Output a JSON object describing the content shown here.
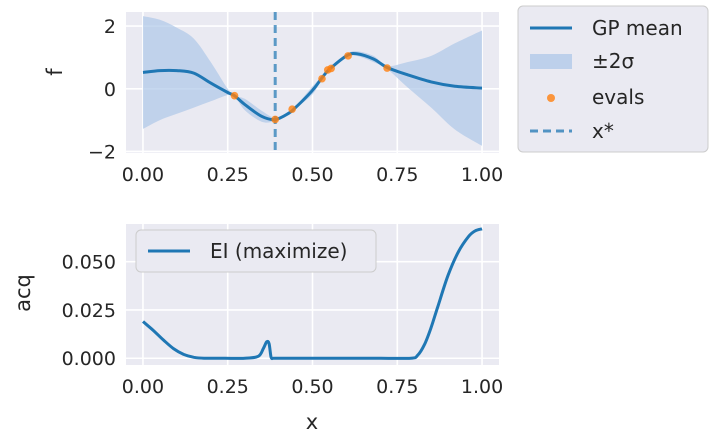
{
  "chart_data": [
    {
      "type": "line",
      "xlabel": "",
      "ylabel": "f",
      "xlim": [
        -0.05,
        1.05
      ],
      "ylim": [
        -2.05,
        2.45
      ],
      "xticks": [
        0.0,
        0.25,
        0.5,
        0.75,
        1.0
      ],
      "xtick_labels": [
        "0.00",
        "0.25",
        "0.50",
        "0.75",
        "1.00"
      ],
      "yticks": [
        -2,
        0,
        2
      ],
      "ytick_labels": [
        "−2",
        "0",
        "2"
      ],
      "grid": true,
      "legend": {
        "placement": "outside-right-top",
        "entries": [
          {
            "label": "GP mean",
            "kind": "line",
            "color": "#1f77b4"
          },
          {
            "label": "±2σ",
            "kind": "band",
            "color": "#aec7e8"
          },
          {
            "label": "evals",
            "kind": "point",
            "color": "#ff7f0e"
          },
          {
            "label": "x*",
            "kind": "dashed",
            "color": "#1f77b4"
          }
        ]
      },
      "series": [
        {
          "name": "GP mean",
          "x": [
            0.0,
            0.05,
            0.1,
            0.15,
            0.2,
            0.25,
            0.27,
            0.3,
            0.35,
            0.39,
            0.43,
            0.45,
            0.5,
            0.53,
            0.55,
            0.6,
            0.63,
            0.68,
            0.72,
            0.78,
            0.85,
            0.92,
            1.0
          ],
          "y": [
            0.52,
            0.58,
            0.58,
            0.5,
            0.18,
            -0.12,
            -0.22,
            -0.5,
            -0.88,
            -0.98,
            -0.78,
            -0.6,
            -0.05,
            0.38,
            0.62,
            1.05,
            1.12,
            0.95,
            0.68,
            0.45,
            0.22,
            0.08,
            0.02
          ]
        },
        {
          "name": "±2σ",
          "x": [
            0.0,
            0.05,
            0.1,
            0.15,
            0.2,
            0.25,
            0.27,
            0.3,
            0.35,
            0.39,
            0.43,
            0.45,
            0.5,
            0.53,
            0.55,
            0.6,
            0.63,
            0.68,
            0.72,
            0.78,
            0.85,
            0.92,
            1.0
          ],
          "lower": [
            -1.28,
            -1.0,
            -0.8,
            -0.6,
            -0.4,
            -0.2,
            -0.22,
            -0.68,
            -1.05,
            -1.03,
            -0.83,
            -0.63,
            -0.18,
            0.35,
            0.58,
            1.0,
            1.05,
            0.85,
            0.63,
            0.05,
            -0.6,
            -1.3,
            -1.82
          ],
          "upper": [
            2.32,
            2.2,
            1.95,
            1.6,
            0.85,
            0.0,
            -0.22,
            -0.32,
            -0.7,
            -0.92,
            -0.72,
            -0.57,
            0.08,
            0.41,
            0.66,
            1.1,
            1.2,
            1.05,
            0.73,
            0.85,
            1.05,
            1.45,
            1.86
          ]
        },
        {
          "name": "evals",
          "x": [
            0.27,
            0.39,
            0.44,
            0.528,
            0.545,
            0.555,
            0.605,
            0.72
          ],
          "y": [
            -0.22,
            -0.98,
            -0.65,
            0.32,
            0.6,
            0.65,
            1.05,
            0.66
          ]
        },
        {
          "name": "x*",
          "x": 0.39
        }
      ]
    },
    {
      "type": "line",
      "xlabel": "x",
      "ylabel": "acq",
      "xlim": [
        -0.05,
        1.05
      ],
      "ylim": [
        -0.0035,
        0.0695
      ],
      "xticks": [
        0.0,
        0.25,
        0.5,
        0.75,
        1.0
      ],
      "xtick_labels": [
        "0.00",
        "0.25",
        "0.50",
        "0.75",
        "1.00"
      ],
      "yticks": [
        0.0,
        0.025,
        0.05
      ],
      "ytick_labels": [
        "0.000",
        "0.025",
        "0.050"
      ],
      "grid": true,
      "legend": {
        "placement": "upper-left",
        "entries": [
          {
            "label": "EI (maximize)",
            "kind": "line",
            "color": "#1f77b4"
          }
        ]
      },
      "series": [
        {
          "name": "EI (maximize)",
          "x": [
            0.0,
            0.03,
            0.06,
            0.09,
            0.12,
            0.15,
            0.18,
            0.22,
            0.3,
            0.34,
            0.355,
            0.365,
            0.372,
            0.378,
            0.385,
            0.4,
            0.5,
            0.6,
            0.7,
            0.79,
            0.81,
            0.83,
            0.85,
            0.87,
            0.9,
            0.93,
            0.96,
            0.98,
            1.0
          ],
          "y": [
            0.019,
            0.0145,
            0.0095,
            0.005,
            0.002,
            0.0005,
            0.0,
            0.0,
            0.0,
            0.001,
            0.005,
            0.0085,
            0.0075,
            0.0005,
            0.0,
            0.0,
            0.0,
            0.0,
            0.0,
            0.0,
            0.0015,
            0.007,
            0.016,
            0.027,
            0.043,
            0.055,
            0.063,
            0.066,
            0.067
          ]
        }
      ]
    }
  ]
}
